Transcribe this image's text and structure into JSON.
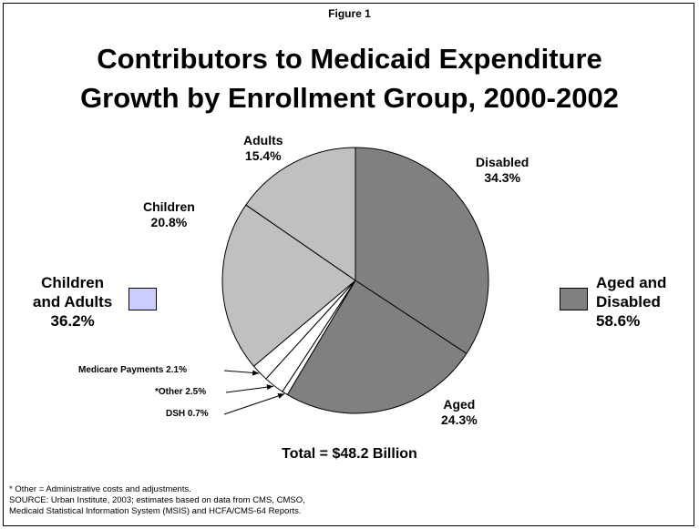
{
  "figure_label": "Figure 1",
  "chart_data": {
    "type": "pie",
    "title": "Contributors to Medicaid Expenditure Growth by Enrollment Group, 2000-2002",
    "title_lines": [
      "Contributors to Medicaid Expenditure",
      "Growth by Enrollment Group, 2000-2002"
    ],
    "unit": "%",
    "slices": [
      {
        "label": "Disabled",
        "value": 34.3,
        "value_text": "34.3%",
        "color": "#808080"
      },
      {
        "label": "Aged",
        "value": 24.3,
        "value_text": "24.3%",
        "color": "#808080"
      },
      {
        "label": "DSH",
        "value": 0.7,
        "value_text": "0.7%",
        "color": "#ffffff"
      },
      {
        "label": "*Other",
        "value": 2.5,
        "value_text": "2.5%",
        "color": "#ffffff"
      },
      {
        "label": "Medicare Payments",
        "value": 2.1,
        "value_text": "2.1%",
        "color": "#ffffff"
      },
      {
        "label": "Children",
        "value": 20.8,
        "value_text": "20.8%",
        "color": "#c0c0c0"
      },
      {
        "label": "Adults",
        "value": 15.4,
        "value_text": "15.4%",
        "color": "#c0c0c0"
      }
    ],
    "groups": [
      {
        "label_lines": [
          "Children",
          "and Adults"
        ],
        "value_text": "36.2%",
        "value": 36.2,
        "color": "#ccccff"
      },
      {
        "label_lines": [
          "Aged and",
          "Disabled"
        ],
        "value_text": "58.6%",
        "value": 58.6,
        "color": "#808080"
      }
    ],
    "total_text": "Total = $48.2 Billion"
  },
  "notes": [
    "* Other = Administrative costs and adjustments.",
    "SOURCE: Urban Institute, 2003; estimates based on data from CMS, CMSO,",
    "Medicaid Statistical Information System (MSIS) and HCFA/CMS-64 Reports."
  ],
  "colors": {
    "border": "#000000",
    "aged_disabled": "#808080",
    "children_adults_slices": "#c0c0c0",
    "children_adults_group_swatch": "#ccccff",
    "small_slices": "#ffffff"
  }
}
